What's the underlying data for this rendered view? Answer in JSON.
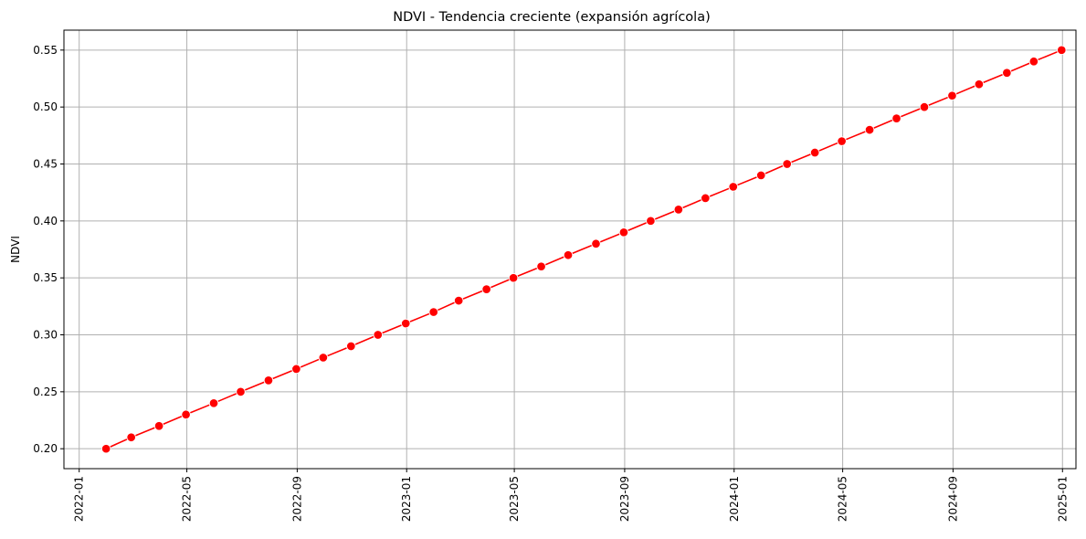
{
  "chart_data": {
    "type": "line",
    "title": "NDVI - Tendencia creciente (expansión agrícola)",
    "xlabel": "",
    "ylabel": "NDVI",
    "grid": true,
    "x_type": "date",
    "x": [
      "2022-01-31",
      "2022-02-28",
      "2022-03-31",
      "2022-04-30",
      "2022-05-31",
      "2022-06-30",
      "2022-07-31",
      "2022-08-31",
      "2022-09-30",
      "2022-10-31",
      "2022-11-30",
      "2022-12-31",
      "2023-01-31",
      "2023-02-28",
      "2023-03-31",
      "2023-04-30",
      "2023-05-31",
      "2023-06-30",
      "2023-07-31",
      "2023-08-31",
      "2023-09-30",
      "2023-10-31",
      "2023-11-30",
      "2023-12-31",
      "2024-01-31",
      "2024-02-29",
      "2024-03-31",
      "2024-04-30",
      "2024-05-31",
      "2024-06-30",
      "2024-07-31",
      "2024-08-31",
      "2024-09-30",
      "2024-10-31",
      "2024-11-30",
      "2024-12-31"
    ],
    "series": [
      {
        "color": "#ff0000",
        "marker": "circle",
        "values": [
          0.2,
          0.21,
          0.22,
          0.23,
          0.24,
          0.25,
          0.26,
          0.27,
          0.28,
          0.29,
          0.3,
          0.31,
          0.32,
          0.33,
          0.34,
          0.35,
          0.36,
          0.37,
          0.38,
          0.39,
          0.4,
          0.41,
          0.42,
          0.43,
          0.44,
          0.45,
          0.46,
          0.47,
          0.48,
          0.49,
          0.5,
          0.51,
          0.52,
          0.53,
          0.54,
          0.55
        ]
      }
    ],
    "xticks": [
      "2022-01",
      "2022-05",
      "2022-09",
      "2023-01",
      "2023-05",
      "2023-09",
      "2024-01",
      "2024-05",
      "2024-09",
      "2025-01"
    ],
    "yticks": [
      "0.20",
      "0.25",
      "0.30",
      "0.35",
      "0.40",
      "0.45",
      "0.50",
      "0.55"
    ],
    "xlim": [
      "2021-12-15",
      "2025-01-16"
    ],
    "ylim": [
      0.1825,
      0.5675
    ]
  }
}
